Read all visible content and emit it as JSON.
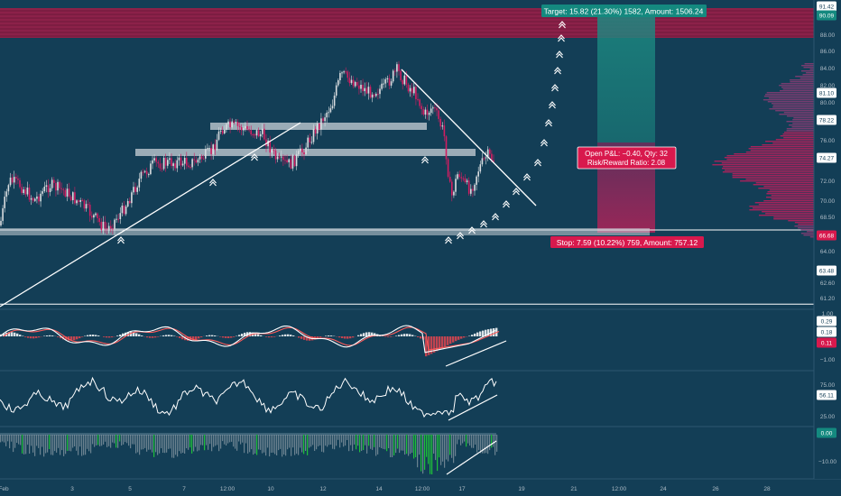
{
  "colors": {
    "background": "#133e56",
    "target_zone": "#1e8c84",
    "stop_zone": "#a8245f",
    "target_label": "#14897f",
    "stop_label": "#d8194d",
    "bull_candle": "#d9dde0",
    "bear_candle": "#d21d62",
    "resistance_band": "#8e1d45",
    "lines": "#ffffff",
    "macd_signal": "#ff5a5a",
    "volume_green": "#1fbf3a"
  },
  "position": {
    "target_text": "Target: 15.82 (21.30%) 1582, Amount: 1506.24",
    "stop_text": "Stop: 7.59 (10.22%) 759, Amount: 757.12",
    "pnl_line1": "Open P&L: −0.40, Qty: 32",
    "pnl_line2": "Risk/Reward Ratio: 2.08"
  },
  "price_axis": {
    "ticks": [
      "88.00",
      "86.00",
      "84.00",
      "82.00",
      "80.00",
      "76.00",
      "72.00",
      "70.00",
      "68.50",
      "64.00",
      "62.60",
      "61.20"
    ],
    "badges": [
      {
        "text": "91.42",
        "style": "white"
      },
      {
        "text": "90.09",
        "style": "green"
      },
      {
        "text": "81.10",
        "style": "white"
      },
      {
        "text": "78.22",
        "style": "white"
      },
      {
        "text": "74.27",
        "style": "white"
      },
      {
        "text": "66.68",
        "style": "red"
      },
      {
        "text": "63.48",
        "style": "white"
      }
    ]
  },
  "macd_axis": {
    "ticks": [
      "1.00",
      "−1.00"
    ],
    "badges": [
      {
        "text": "0.29",
        "style": "white"
      },
      {
        "text": "0.18",
        "style": "white"
      },
      {
        "text": "0.11",
        "style": "red"
      }
    ]
  },
  "rsi_axis": {
    "ticks": [
      "75.00",
      "25.00"
    ],
    "badges": [
      {
        "text": "56.11",
        "style": "white"
      }
    ]
  },
  "volume_axis": {
    "ticks": [
      "−10.00"
    ],
    "badges": [
      {
        "text": "0.00",
        "style": "green"
      }
    ]
  },
  "time_axis": {
    "labels": [
      "Feb",
      "3",
      "5",
      "7",
      "12:00",
      "10",
      "12",
      "14",
      "12:00",
      "17",
      "19",
      "21",
      "12:00",
      "24",
      "26",
      "28"
    ]
  },
  "chart_data": {
    "type": "candlestick",
    "price_levels": [
      91.42,
      81.1,
      78.22,
      66.68,
      63.48
    ],
    "last_price": 74.27,
    "target_price": 90.09,
    "stop_price": 66.68,
    "price_range": [
      60,
      92
    ]
  }
}
